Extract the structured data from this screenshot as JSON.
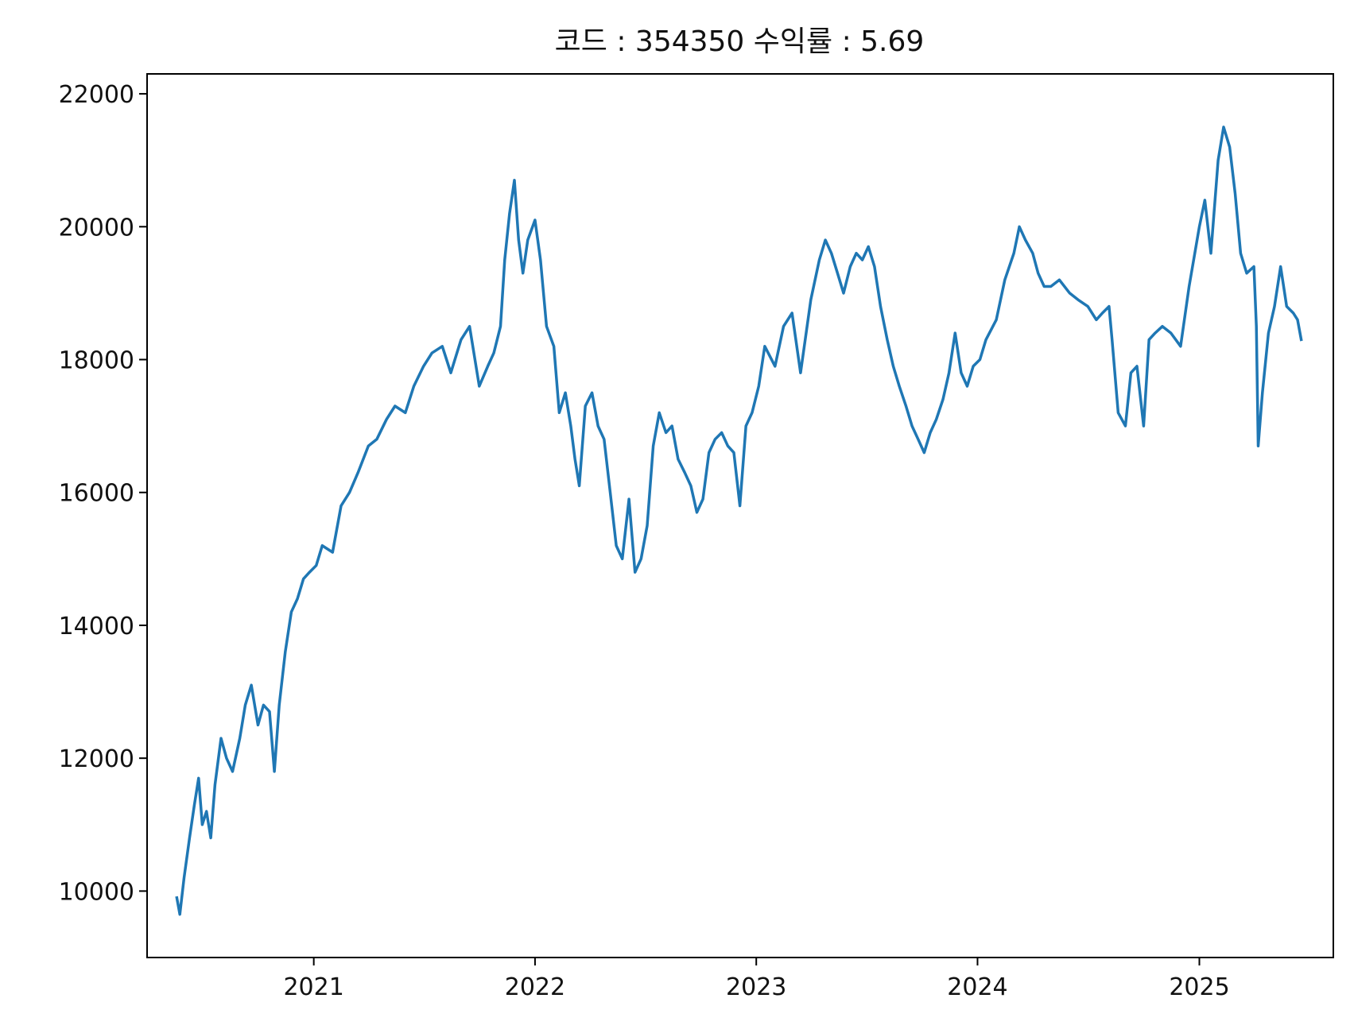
{
  "chart_data": {
    "type": "line",
    "title": "코드 : 354350 수익률 : 5.69",
    "xlabel": "",
    "ylabel": "",
    "xlim": [
      "2020-04-01",
      "2025-08-10"
    ],
    "ylim": [
      9000,
      22300
    ],
    "x_ticks": [
      "2021",
      "2022",
      "2023",
      "2024",
      "2025"
    ],
    "x_tick_dates": [
      "2021-01-01",
      "2022-01-01",
      "2023-01-01",
      "2024-01-01",
      "2025-01-01"
    ],
    "y_ticks": [
      "10000",
      "12000",
      "14000",
      "16000",
      "18000",
      "20000",
      "22000"
    ],
    "y_tick_values": [
      10000,
      12000,
      14000,
      16000,
      18000,
      20000,
      22000
    ],
    "grid": false,
    "series": [
      {
        "color": "#1f77b4",
        "x": [
          "2020-05-20",
          "2020-05-25",
          "2020-06-01",
          "2020-06-10",
          "2020-06-18",
          "2020-06-25",
          "2020-07-01",
          "2020-07-08",
          "2020-07-15",
          "2020-07-22",
          "2020-08-01",
          "2020-08-10",
          "2020-08-20",
          "2020-09-01",
          "2020-09-10",
          "2020-09-20",
          "2020-10-01",
          "2020-10-10",
          "2020-10-20",
          "2020-10-28",
          "2020-11-05",
          "2020-11-15",
          "2020-11-25",
          "2020-12-05",
          "2020-12-15",
          "2020-12-25",
          "2021-01-05",
          "2021-01-15",
          "2021-02-01",
          "2021-02-15",
          "2021-03-01",
          "2021-03-15",
          "2021-04-01",
          "2021-04-15",
          "2021-05-01",
          "2021-05-15",
          "2021-06-01",
          "2021-06-15",
          "2021-07-01",
          "2021-07-15",
          "2021-08-01",
          "2021-08-15",
          "2021-09-01",
          "2021-09-15",
          "2021-10-01",
          "2021-10-15",
          "2021-10-25",
          "2021-11-05",
          "2021-11-12",
          "2021-11-20",
          "2021-11-28",
          "2021-12-05",
          "2021-12-12",
          "2021-12-20",
          "2022-01-01",
          "2022-01-10",
          "2022-01-20",
          "2022-02-01",
          "2022-02-10",
          "2022-02-20",
          "2022-03-01",
          "2022-03-08",
          "2022-03-15",
          "2022-03-25",
          "2022-04-05",
          "2022-04-15",
          "2022-04-25",
          "2022-05-05",
          "2022-05-15",
          "2022-05-25",
          "2022-06-05",
          "2022-06-15",
          "2022-06-25",
          "2022-07-05",
          "2022-07-15",
          "2022-07-25",
          "2022-08-05",
          "2022-08-15",
          "2022-08-25",
          "2022-09-05",
          "2022-09-15",
          "2022-09-25",
          "2022-10-05",
          "2022-10-15",
          "2022-10-25",
          "2022-11-05",
          "2022-11-15",
          "2022-11-25",
          "2022-12-05",
          "2022-12-15",
          "2022-12-25",
          "2023-01-05",
          "2023-01-15",
          "2023-02-01",
          "2023-02-15",
          "2023-03-01",
          "2023-03-15",
          "2023-04-01",
          "2023-04-15",
          "2023-04-25",
          "2023-05-05",
          "2023-05-15",
          "2023-05-25",
          "2023-06-05",
          "2023-06-15",
          "2023-06-25",
          "2023-07-05",
          "2023-07-15",
          "2023-07-25",
          "2023-08-05",
          "2023-08-15",
          "2023-08-25",
          "2023-09-05",
          "2023-09-15",
          "2023-09-25",
          "2023-10-05",
          "2023-10-15",
          "2023-10-25",
          "2023-11-05",
          "2023-11-15",
          "2023-11-25",
          "2023-12-05",
          "2023-12-15",
          "2023-12-25",
          "2024-01-05",
          "2024-01-15",
          "2024-02-01",
          "2024-02-15",
          "2024-03-01",
          "2024-03-10",
          "2024-03-20",
          "2024-04-01",
          "2024-04-10",
          "2024-04-20",
          "2024-05-01",
          "2024-05-15",
          "2024-06-01",
          "2024-06-15",
          "2024-07-01",
          "2024-07-15",
          "2024-07-25",
          "2024-08-05",
          "2024-08-10",
          "2024-08-20",
          "2024-09-01",
          "2024-09-10",
          "2024-09-20",
          "2024-10-01",
          "2024-10-10",
          "2024-10-20",
          "2024-11-01",
          "2024-11-15",
          "2024-12-01",
          "2024-12-15",
          "2025-01-01",
          "2025-01-10",
          "2025-01-20",
          "2025-02-01",
          "2025-02-10",
          "2025-02-20",
          "2025-03-01",
          "2025-03-10",
          "2025-03-20",
          "2025-04-01",
          "2025-04-05",
          "2025-04-08",
          "2025-04-15",
          "2025-04-25",
          "2025-05-05",
          "2025-05-15",
          "2025-05-25",
          "2025-06-05",
          "2025-06-12",
          "2025-06-18"
        ],
        "y": [
          9900,
          9650,
          10200,
          10800,
          11300,
          11700,
          11000,
          11200,
          10800,
          11600,
          12300,
          12000,
          11800,
          12300,
          12800,
          13100,
          12500,
          12800,
          12700,
          11800,
          12800,
          13600,
          14200,
          14400,
          14700,
          14800,
          14900,
          15200,
          15100,
          15800,
          16000,
          16300,
          16700,
          16800,
          17100,
          17300,
          17200,
          17600,
          17900,
          18100,
          18200,
          17800,
          18300,
          18500,
          17600,
          17900,
          18100,
          18500,
          19500,
          20200,
          20700,
          19800,
          19300,
          19800,
          20100,
          19500,
          18500,
          18200,
          17200,
          17500,
          17000,
          16500,
          16100,
          17300,
          17500,
          17000,
          16800,
          16000,
          15200,
          15000,
          15900,
          14800,
          15000,
          15500,
          16700,
          17200,
          16900,
          17000,
          16500,
          16300,
          16100,
          15700,
          15900,
          16600,
          16800,
          16900,
          16700,
          16600,
          15800,
          17000,
          17200,
          17600,
          18200,
          17900,
          18500,
          18700,
          17800,
          18900,
          19500,
          19800,
          19600,
          19300,
          19000,
          19400,
          19600,
          19500,
          19700,
          19400,
          18800,
          18300,
          17900,
          17600,
          17300,
          17000,
          16800,
          16600,
          16900,
          17100,
          17400,
          17800,
          18400,
          17800,
          17600,
          17900,
          18000,
          18300,
          18600,
          19200,
          19600,
          20000,
          19800,
          19600,
          19300,
          19100,
          19100,
          19200,
          19000,
          18900,
          18800,
          18600,
          18700,
          18800,
          18300,
          17200,
          17000,
          17800,
          17900,
          17000,
          18300,
          18400,
          18500,
          18400,
          18200,
          19100,
          20000,
          20400,
          19600,
          21000,
          21500,
          21200,
          20500,
          19600,
          19300,
          19400,
          18500,
          16700,
          17500,
          18400,
          18800,
          19400,
          18800,
          18700,
          18600,
          18300
        ]
      }
    ]
  }
}
